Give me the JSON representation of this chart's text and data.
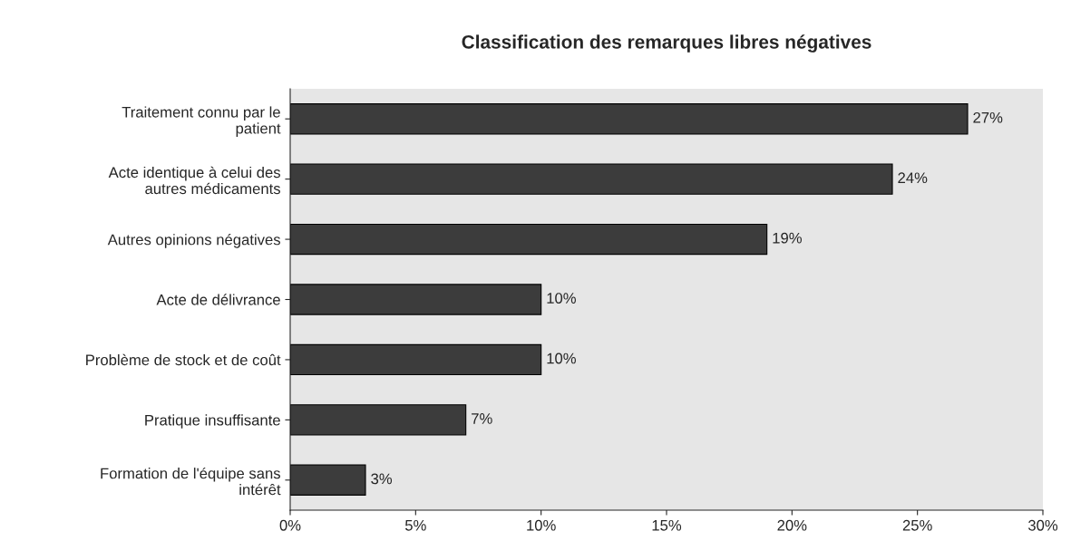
{
  "chart_data": {
    "type": "bar",
    "orientation": "horizontal",
    "title": "Classification des remarques libres négatives",
    "categories": [
      "Traitement connu par le\npatient",
      "Acte identique à celui des\nautres médicaments",
      "Autres opinions négatives",
      "Acte de délivrance",
      "Problème de stock et de coût",
      "Pratique insuffisante",
      "Formation de l'équipe sans\nintérêt"
    ],
    "values": [
      27,
      24,
      19,
      10,
      10,
      7,
      3
    ],
    "value_labels": [
      "27%",
      "24%",
      "19%",
      "10%",
      "10%",
      "7%",
      "3%"
    ],
    "color": "#3c3c3c",
    "xlim": [
      0,
      30
    ],
    "xticks": [
      {
        "value": 0,
        "label": "0%"
      },
      {
        "value": 5,
        "label": "5%"
      },
      {
        "value": 10,
        "label": "10%"
      },
      {
        "value": 15,
        "label": "15%"
      },
      {
        "value": 20,
        "label": "20%"
      },
      {
        "value": 25,
        "label": "25%"
      },
      {
        "value": 30,
        "label": "30%"
      }
    ],
    "grid": false
  }
}
